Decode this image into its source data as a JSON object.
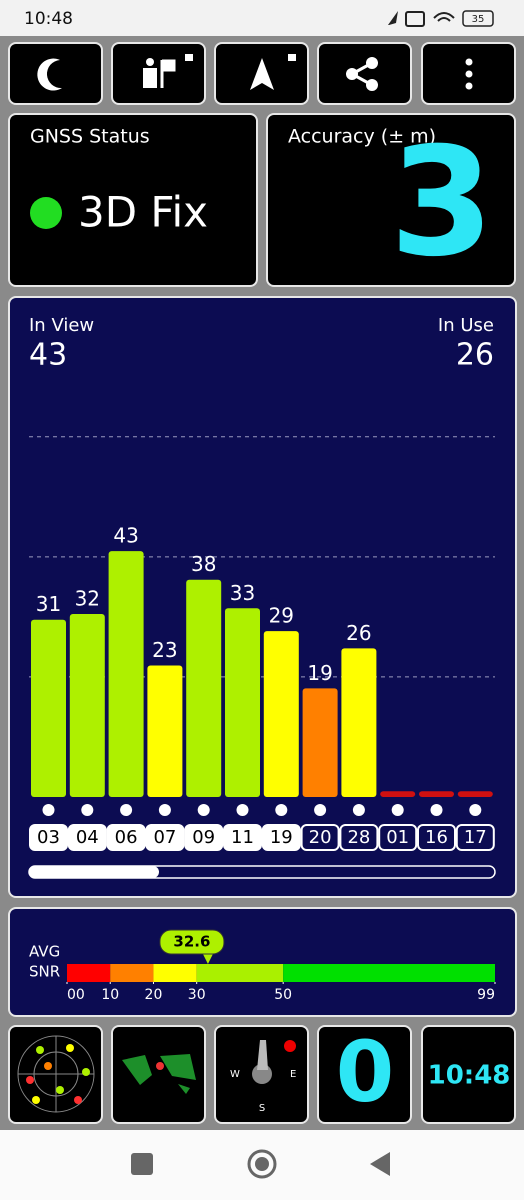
{
  "status_bar": {
    "time": "10:48",
    "battery": "35"
  },
  "gnss": {
    "title": "GNSS Status",
    "fix": "3D Fix"
  },
  "accuracy": {
    "title": "Accuracy (± m)",
    "value": 3
  },
  "satellites": {
    "in_view_label": "In View",
    "in_view": 43,
    "in_use_label": "In Use",
    "in_use": 26,
    "ylim": [
      0,
      64
    ],
    "grid": [
      21,
      42,
      63
    ],
    "ids": [
      "03",
      "04",
      "06",
      "07",
      "09",
      "11",
      "19",
      "20",
      "28",
      "01",
      "16",
      "17"
    ],
    "snr": [
      31,
      32,
      43,
      23,
      38,
      33,
      29,
      19,
      26,
      1,
      1,
      1
    ],
    "value_labels": [
      "31",
      "32",
      "43",
      "23",
      "38",
      "33",
      "29",
      "19",
      "26",
      null,
      null,
      null
    ],
    "colors": [
      "#aef000",
      "#aef000",
      "#aef000",
      "#ffff00",
      "#aef000",
      "#aef000",
      "#ffff00",
      "#ff8000",
      "#ffff00",
      "#d01010",
      "#d01010",
      "#d01010"
    ],
    "used": [
      true,
      true,
      true,
      true,
      true,
      true,
      true,
      false,
      false,
      false,
      false,
      false
    ]
  },
  "avg_snr": {
    "label_1": "AVG",
    "label_2": "SNR",
    "value": 32.6,
    "xlim": [
      0,
      99
    ],
    "ticks": [
      {
        "value": 0,
        "label": "00"
      },
      10,
      20,
      30,
      50,
      99
    ],
    "band_colors": [
      "#ff0000",
      "#ff8000",
      "#ffff00",
      "#aaf000",
      "#00e000"
    ]
  },
  "widgets": {
    "compass": {
      "west": "W",
      "east": "E",
      "south": "S"
    },
    "speed": 0,
    "clock": "10:48"
  }
}
